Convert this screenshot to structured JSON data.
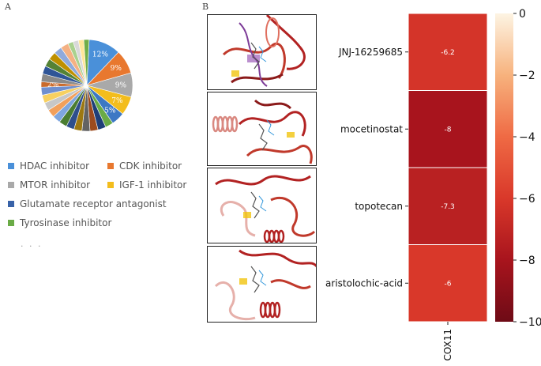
{
  "panels": {
    "a": "A",
    "b": "B"
  },
  "legend_more": ". . .",
  "legend": [
    {
      "label": "HDAC inhibitor",
      "color": "#4a90d9"
    },
    {
      "label": "CDK inhibitor",
      "color": "#e8782f"
    },
    {
      "label": "MTOR inhibitor",
      "color": "#a9a9a9"
    },
    {
      "label": "IGF-1 inhibitor",
      "color": "#f3bd1d"
    },
    {
      "label": "Glutamate receptor antagonist",
      "color": "#3862a8"
    },
    {
      "label": "Tyrosinase inhibitor",
      "color": "#6aab46"
    }
  ],
  "structures": [
    {
      "name": "docking-structure-jnj"
    },
    {
      "name": "docking-structure-mocetinostat"
    },
    {
      "name": "docking-structure-topotecan"
    },
    {
      "name": "docking-structure-aristolochic"
    }
  ],
  "chart_data": [
    {
      "type": "pie",
      "slices": [
        {
          "category": "HDAC inhibitor",
          "value": 12,
          "label": "12%",
          "color": "#4a90d9"
        },
        {
          "category": "CDK inhibitor",
          "value": 9,
          "label": "9%",
          "color": "#e8782f"
        },
        {
          "category": "MTOR inhibitor",
          "value": 9,
          "label": "9%",
          "color": "#a9a9a9"
        },
        {
          "category": "IGF-1 inhibitor",
          "value": 7,
          "label": "7%",
          "color": "#f3bd1d"
        },
        {
          "category": "",
          "value": 5,
          "label": "5%",
          "color": "#3d78c4"
        },
        {
          "category": "",
          "value": 3,
          "label": "",
          "color": "#6aab46"
        },
        {
          "category": "",
          "value": 3,
          "label": "",
          "color": "#1f3f78"
        },
        {
          "category": "",
          "value": 3,
          "label": "",
          "color": "#9c4b1e"
        },
        {
          "category": "",
          "value": 3,
          "label": "",
          "color": "#636363"
        },
        {
          "category": "",
          "value": 3,
          "label": "",
          "color": "#9c7812"
        },
        {
          "category": "",
          "value": 3,
          "label": "",
          "color": "#2e4f8c"
        },
        {
          "category": "",
          "value": 3,
          "label": "",
          "color": "#4a7d31"
        },
        {
          "category": "",
          "value": 3,
          "label": "",
          "color": "#7ea6e0"
        },
        {
          "category": "",
          "value": 3,
          "label": "",
          "color": "#f2a05c"
        },
        {
          "category": "",
          "value": 3,
          "label": "",
          "color": "#c7c7c7"
        },
        {
          "category": "",
          "value": 3,
          "label": "",
          "color": "#f7d060"
        },
        {
          "category": "",
          "value": 3,
          "label": "",
          "color": "#6f8fcf"
        },
        {
          "category": "",
          "value": 2,
          "label": "2%",
          "color": "#c96a2c"
        },
        {
          "category": "",
          "value": 3,
          "label": "",
          "color": "#8a8a8a"
        },
        {
          "category": "",
          "value": 3,
          "label": "",
          "color": "#2f5597"
        },
        {
          "category": "",
          "value": 3,
          "label": "",
          "color": "#548235"
        },
        {
          "category": "",
          "value": 3,
          "label": "",
          "color": "#bf9000"
        },
        {
          "category": "",
          "value": 3,
          "label": "",
          "color": "#8faadc"
        },
        {
          "category": "",
          "value": 3,
          "label": "",
          "color": "#f4b183"
        },
        {
          "category": "",
          "value": 2,
          "label": "",
          "color": "#a9d18e"
        },
        {
          "category": "",
          "value": 2,
          "label": "",
          "color": "#d9d9d9"
        },
        {
          "category": "",
          "value": 2,
          "label": "",
          "color": "#ffe699"
        },
        {
          "category": "",
          "value": 2,
          "label": "",
          "color": "#70ad47"
        }
      ]
    },
    {
      "type": "heatmap",
      "rows": [
        "JNJ-16259685",
        "mocetinostat",
        "topotecan",
        "aristolochic-acid"
      ],
      "columns": [
        "COX11"
      ],
      "values": [
        [
          -6.2
        ],
        [
          -8
        ],
        [
          -7.3
        ],
        [
          -6
        ]
      ],
      "colorbar": {
        "min": -10,
        "max": 0,
        "ticks": [
          "0",
          "−2",
          "−4",
          "−6",
          "−8",
          "−10"
        ]
      }
    }
  ]
}
